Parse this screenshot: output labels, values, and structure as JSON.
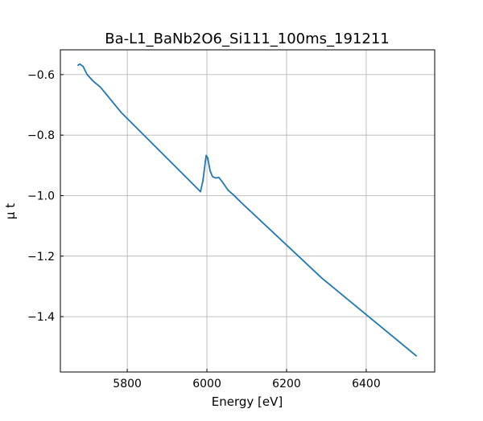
{
  "chart_data": {
    "type": "line",
    "title": "Ba-L1_BaNb2O6_Si111_100ms_191211",
    "xlabel": "Energy [eV]",
    "ylabel": "μ t",
    "xlim": [
      5632,
      6572
    ],
    "ylim": [
      -1.583,
      -0.518
    ],
    "xticks": [
      5800,
      6000,
      6200,
      6400
    ],
    "yticks": [
      -0.6,
      -0.8,
      -1.0,
      -1.2,
      -1.4
    ],
    "xtick_labels": [
      "5800",
      "6000",
      "6200",
      "6400"
    ],
    "ytick_labels": [
      "−0.6",
      "−0.8",
      "−1.0",
      "−1.2",
      "−1.4"
    ],
    "grid": true,
    "series": [
      {
        "name": "μ t",
        "color": "#1f77b4",
        "x": [
          5675,
          5681,
          5689,
          5699,
          5713,
          5733,
          5784,
          5885,
          5966,
          5984,
          5990,
          5998,
          6002,
          6008,
          6014,
          6022,
          6030,
          6038,
          6053,
          6067,
          6087,
          6289,
          6527
        ],
        "y": [
          -0.57,
          -0.565,
          -0.573,
          -0.599,
          -0.62,
          -0.642,
          -0.724,
          -0.857,
          -0.963,
          -0.987,
          -0.95,
          -0.867,
          -0.875,
          -0.918,
          -0.937,
          -0.942,
          -0.94,
          -0.953,
          -0.982,
          -0.998,
          -1.024,
          -1.273,
          -1.531
        ]
      }
    ]
  }
}
